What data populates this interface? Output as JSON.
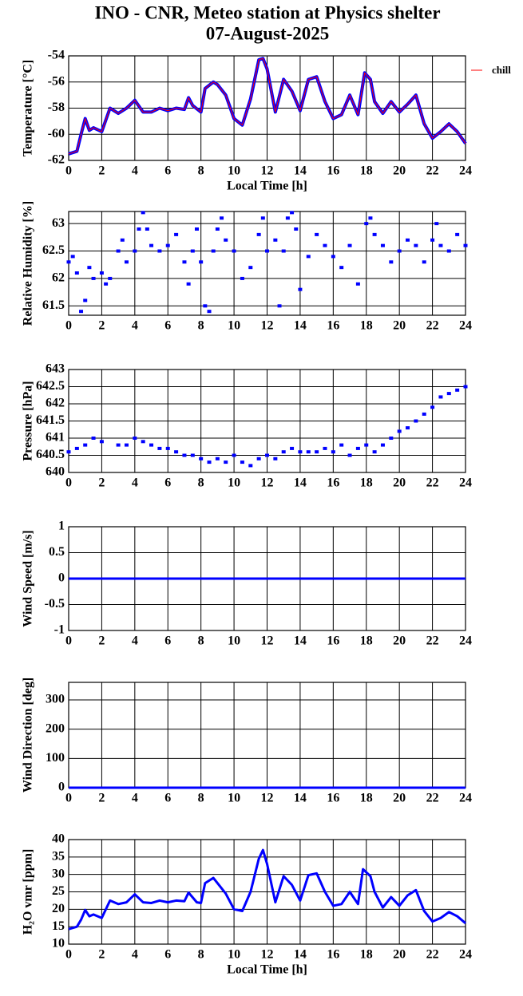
{
  "chart_data": [
    {
      "type": "line",
      "title": "INO - CNR, Meteo station at Physics shelter",
      "subtitle": "07-August-2025",
      "ylabel": "Temperature [°C]",
      "xlabel": "Local Time [h]",
      "xlim": [
        0,
        24
      ],
      "xticks": [
        0,
        2,
        4,
        6,
        8,
        10,
        12,
        14,
        16,
        18,
        20,
        22,
        24
      ],
      "ylim": [
        -62,
        -54
      ],
      "yticks": [
        -62,
        -60,
        -58,
        -56,
        -54
      ],
      "grid": true,
      "legend": "right",
      "x": [
        0,
        0.5,
        0.75,
        1,
        1.25,
        1.5,
        2,
        2.5,
        3,
        3.5,
        4,
        4.5,
        5,
        5.5,
        6,
        6.5,
        7,
        7.25,
        7.5,
        8,
        8.25,
        8.75,
        9,
        9.5,
        10,
        10.5,
        11,
        11.5,
        11.75,
        12,
        12.5,
        13,
        13.5,
        14,
        14.5,
        15,
        15.5,
        16,
        16.5,
        17,
        17.5,
        17.9,
        18.25,
        18.5,
        19,
        19.5,
        20,
        20.5,
        21,
        21.5,
        22,
        22.5,
        23,
        23.5,
        24
      ],
      "series": [
        {
          "name": "chill",
          "color": "#ff0000",
          "marker_color": "#0000ff",
          "values": [
            -61.5,
            -61.3,
            -60,
            -58.8,
            -59.7,
            -59.5,
            -59.8,
            -58,
            -58.4,
            -58,
            -57.4,
            -58.3,
            -58.3,
            -58,
            -58.2,
            -58,
            -58.1,
            -57.2,
            -57.8,
            -58.3,
            -56.5,
            -56,
            -56.2,
            -57,
            -58.8,
            -59.3,
            -57.3,
            -54.3,
            -54.2,
            -55,
            -58.3,
            -55.8,
            -56.7,
            -58.2,
            -55.8,
            -55.6,
            -57.5,
            -58.8,
            -58.5,
            -57,
            -58.5,
            -55.3,
            -55.8,
            -57.5,
            -58.4,
            -57.5,
            -58.3,
            -57.7,
            -57,
            -59.2,
            -60.3,
            -59.8,
            -59.2,
            -59.8,
            -60.7
          ]
        }
      ]
    },
    {
      "type": "scatter",
      "ylabel": "Relative Humidity [%]",
      "xlim": [
        0,
        24
      ],
      "xticks": [
        0,
        2,
        4,
        6,
        8,
        10,
        12,
        14,
        16,
        18,
        20,
        22,
        24
      ],
      "ylim": [
        61.33,
        63.22
      ],
      "yticks": [
        61.5,
        62,
        62.5,
        63
      ],
      "grid": true,
      "x": [
        0,
        0.25,
        0.5,
        0.75,
        1,
        1.25,
        1.5,
        2,
        2.25,
        2.5,
        3,
        3.25,
        3.5,
        4,
        4.25,
        4.5,
        4.75,
        5,
        5.5,
        6,
        6.5,
        7,
        7.25,
        7.5,
        7.75,
        8,
        8.25,
        8.5,
        8.75,
        9,
        9.25,
        9.5,
        10,
        10.5,
        11,
        11.5,
        11.75,
        12,
        12.5,
        12.75,
        13,
        13.25,
        13.5,
        13.75,
        14,
        14.5,
        15,
        15.5,
        16,
        16.5,
        17,
        17.5,
        18,
        18.25,
        18.5,
        19,
        19.5,
        20,
        20.5,
        21,
        21.5,
        22,
        22.25,
        22.5,
        23,
        23.5,
        24
      ],
      "series": [
        {
          "color": "#0000ff",
          "values": [
            62.3,
            62.4,
            62.1,
            61.4,
            61.6,
            62.2,
            62.0,
            62.1,
            61.9,
            62.0,
            62.5,
            62.7,
            62.3,
            62.5,
            62.9,
            63.2,
            62.9,
            62.6,
            62.5,
            62.6,
            62.8,
            62.3,
            61.9,
            62.5,
            62.9,
            62.3,
            61.5,
            61.4,
            62.5,
            62.9,
            63.1,
            62.7,
            62.5,
            62.0,
            62.2,
            62.8,
            63.1,
            62.5,
            62.7,
            61.5,
            62.5,
            63.1,
            63.2,
            62.9,
            61.8,
            62.4,
            62.8,
            62.6,
            62.4,
            62.2,
            62.6,
            61.9,
            63.0,
            63.1,
            62.8,
            62.6,
            62.3,
            62.5,
            62.7,
            62.6,
            62.3,
            62.7,
            63.0,
            62.6,
            62.5,
            62.8,
            62.6
          ]
        }
      ]
    },
    {
      "type": "scatter",
      "ylabel": "Pressure [hPa]",
      "xlim": [
        0,
        24
      ],
      "xticks": [
        0,
        2,
        4,
        6,
        8,
        10,
        12,
        14,
        16,
        18,
        20,
        22,
        24
      ],
      "ylim": [
        640,
        643
      ],
      "yticks": [
        640,
        640.5,
        641,
        641.5,
        642,
        642.5,
        643
      ],
      "grid": true,
      "x": [
        0,
        0.5,
        1,
        1.5,
        2,
        3,
        3.5,
        4,
        4.5,
        5,
        5.5,
        6,
        6.5,
        7,
        7.5,
        8,
        8.5,
        9,
        9.5,
        10,
        10.5,
        11,
        11.5,
        12,
        12.5,
        13,
        13.5,
        14,
        14.5,
        15,
        15.5,
        16,
        16.5,
        17,
        17.5,
        18,
        18.5,
        19,
        19.5,
        20,
        20.5,
        21,
        21.5,
        22,
        22.5,
        23,
        23.5,
        24
      ],
      "series": [
        {
          "color": "#0000ff",
          "values": [
            640.6,
            640.7,
            640.8,
            641.0,
            640.9,
            640.8,
            640.8,
            641.0,
            640.9,
            640.8,
            640.7,
            640.7,
            640.6,
            640.5,
            640.5,
            640.4,
            640.3,
            640.4,
            640.3,
            640.5,
            640.3,
            640.2,
            640.4,
            640.5,
            640.4,
            640.6,
            640.7,
            640.6,
            640.6,
            640.6,
            640.7,
            640.6,
            640.8,
            640.5,
            640.7,
            640.8,
            640.6,
            640.8,
            641.0,
            641.2,
            641.3,
            641.5,
            641.7,
            641.9,
            642.2,
            642.3,
            642.4,
            642.5
          ]
        }
      ]
    },
    {
      "type": "line",
      "ylabel": "Wind Speed [m/s]",
      "xlim": [
        0,
        24
      ],
      "xticks": [
        0,
        2,
        4,
        6,
        8,
        10,
        12,
        14,
        16,
        18,
        20,
        22,
        24
      ],
      "ylim": [
        -1,
        1
      ],
      "yticks": [
        -1,
        -0.5,
        0,
        0.5,
        1
      ],
      "grid": true,
      "x": [
        0,
        24
      ],
      "series": [
        {
          "color": "#0000ff",
          "values": [
            0,
            0
          ]
        }
      ]
    },
    {
      "type": "line",
      "ylabel": "Wind Direction [deg]",
      "xlim": [
        0,
        24
      ],
      "xticks": [
        0,
        2,
        4,
        6,
        8,
        10,
        12,
        14,
        16,
        18,
        20,
        22,
        24
      ],
      "ylim": [
        0,
        360
      ],
      "yticks": [
        0,
        100,
        200,
        300
      ],
      "grid": true,
      "x": [
        0,
        24
      ],
      "series": [
        {
          "color": "#0000ff",
          "values": [
            0,
            0
          ]
        }
      ]
    },
    {
      "type": "line",
      "ylabel": "H₂O vmr [ppm]",
      "xlabel": "Local Time [h]",
      "xlim": [
        0,
        24
      ],
      "xticks": [
        0,
        2,
        4,
        6,
        8,
        10,
        12,
        14,
        16,
        18,
        20,
        22,
        24
      ],
      "ylim": [
        10,
        40
      ],
      "yticks": [
        10,
        15,
        20,
        25,
        30,
        35,
        40
      ],
      "grid": true,
      "x": [
        0,
        0.5,
        0.75,
        1,
        1.25,
        1.5,
        2,
        2.5,
        3,
        3.5,
        4,
        4.5,
        5,
        5.5,
        6,
        6.5,
        7,
        7.25,
        7.75,
        8,
        8.25,
        8.75,
        9,
        9.5,
        10,
        10.5,
        11,
        11.5,
        11.75,
        12,
        12.5,
        13,
        13.5,
        14,
        14.5,
        15,
        15.5,
        16,
        16.5,
        17,
        17.5,
        17.8,
        18.25,
        18.5,
        19,
        19.5,
        20,
        20.5,
        21,
        21.5,
        22,
        22.5,
        23,
        23.5,
        24
      ],
      "series": [
        {
          "color": "#0000ff",
          "values": [
            14.3,
            15,
            17,
            19.8,
            18,
            18.5,
            17.5,
            22.5,
            21.5,
            22,
            24.3,
            22,
            21.8,
            22.5,
            22,
            22.5,
            22.3,
            24.8,
            22,
            21.8,
            27.5,
            29,
            27.5,
            24.5,
            20,
            19.5,
            25,
            34.5,
            37,
            33,
            22,
            29.5,
            27,
            22.5,
            29.8,
            30.3,
            25,
            21,
            21.5,
            25,
            21.5,
            31.5,
            29.5,
            25,
            20.5,
            23.5,
            21,
            24,
            25.5,
            19.5,
            16.5,
            17.5,
            19.2,
            18,
            16
          ]
        }
      ]
    }
  ]
}
